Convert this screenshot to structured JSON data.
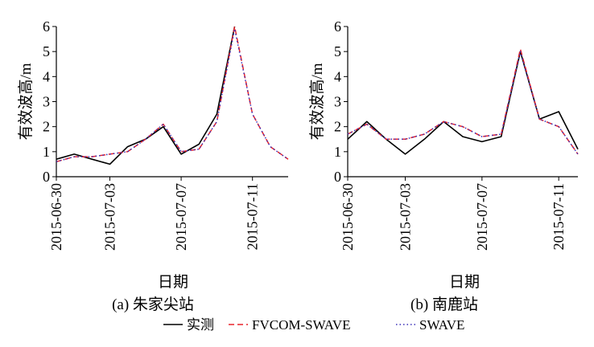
{
  "legend": {
    "items": [
      {
        "label": "实测",
        "color": "#000000",
        "dash": "solid"
      },
      {
        "label": "FVCOM-SWAVE",
        "color": "#e8242c",
        "dash": "dashed"
      },
      {
        "label": "SWAVE",
        "color": "#3a2fb8",
        "dash": "dotted"
      }
    ]
  },
  "chart_data": [
    {
      "type": "line",
      "caption": "(a) 朱家尖站",
      "xlabel": "日期",
      "ylabel": "有效波高/m",
      "xlim": [
        "2015-06-30",
        "2015-07-13"
      ],
      "ylim": [
        0,
        6
      ],
      "xticks": [
        "2015-06-30",
        "2015-07-03",
        "2015-07-07",
        "2015-07-11"
      ],
      "yticks": [
        0,
        1,
        2,
        3,
        4,
        5,
        6
      ],
      "series": [
        {
          "name": "实测",
          "color": "#000000",
          "dash": "solid",
          "x": [
            "2015-06-30",
            "2015-07-01",
            "2015-07-02",
            "2015-07-03",
            "2015-07-04",
            "2015-07-05",
            "2015-07-06",
            "2015-07-07",
            "2015-07-08",
            "2015-07-09",
            "2015-07-10"
          ],
          "values": [
            0.7,
            0.9,
            0.7,
            0.5,
            1.2,
            1.5,
            2.0,
            0.9,
            1.3,
            2.5,
            6.0
          ]
        },
        {
          "name": "FVCOM-SWAVE",
          "color": "#e8242c",
          "dash": "dashed",
          "x": [
            "2015-06-30",
            "2015-07-01",
            "2015-07-02",
            "2015-07-03",
            "2015-07-04",
            "2015-07-05",
            "2015-07-06",
            "2015-07-07",
            "2015-07-08",
            "2015-07-09",
            "2015-07-10",
            "2015-07-11",
            "2015-07-12",
            "2015-07-13"
          ],
          "values": [
            0.6,
            0.8,
            0.8,
            0.9,
            1.0,
            1.5,
            2.1,
            1.0,
            1.1,
            2.2,
            6.0,
            2.5,
            1.2,
            0.7
          ]
        },
        {
          "name": "SWAVE",
          "color": "#3a2fb8",
          "dash": "dotted",
          "x": [
            "2015-06-30",
            "2015-07-01",
            "2015-07-02",
            "2015-07-03",
            "2015-07-04",
            "2015-07-05",
            "2015-07-06",
            "2015-07-07",
            "2015-07-08",
            "2015-07-09",
            "2015-07-10",
            "2015-07-11",
            "2015-07-12",
            "2015-07-13"
          ],
          "values": [
            0.6,
            0.8,
            0.8,
            0.9,
            1.0,
            1.5,
            2.1,
            1.0,
            1.1,
            2.2,
            5.9,
            2.5,
            1.2,
            0.7
          ]
        }
      ]
    },
    {
      "type": "line",
      "caption": "(b) 南鹿站",
      "xlabel": "日期",
      "ylabel": "有效波高/m",
      "xlim": [
        "2015-06-30",
        "2015-07-12"
      ],
      "ylim": [
        0,
        6
      ],
      "xticks": [
        "2015-06-30",
        "2015-07-03",
        "2015-07-07",
        "2015-07-11"
      ],
      "yticks": [
        0,
        1,
        2,
        3,
        4,
        5,
        6
      ],
      "series": [
        {
          "name": "实测",
          "color": "#000000",
          "dash": "solid",
          "x": [
            "2015-06-30",
            "2015-07-01",
            "2015-07-02",
            "2015-07-03",
            "2015-07-04",
            "2015-07-05",
            "2015-07-06",
            "2015-07-07",
            "2015-07-08",
            "2015-07-09",
            "2015-07-10",
            "2015-07-11",
            "2015-07-12"
          ],
          "values": [
            1.5,
            2.2,
            1.5,
            0.9,
            1.5,
            2.2,
            1.6,
            1.4,
            1.6,
            5.0,
            2.3,
            2.6,
            1.1
          ]
        },
        {
          "name": "FVCOM-SWAVE",
          "color": "#e8242c",
          "dash": "dashed",
          "x": [
            "2015-06-30",
            "2015-07-01",
            "2015-07-02",
            "2015-07-03",
            "2015-07-04",
            "2015-07-05",
            "2015-07-06",
            "2015-07-07",
            "2015-07-08",
            "2015-07-09",
            "2015-07-10",
            "2015-07-11",
            "2015-07-12"
          ],
          "values": [
            1.7,
            2.1,
            1.5,
            1.5,
            1.7,
            2.2,
            2.0,
            1.6,
            1.7,
            5.1,
            2.3,
            2.0,
            0.9
          ]
        },
        {
          "name": "SWAVE",
          "color": "#3a2fb8",
          "dash": "dotted",
          "x": [
            "2015-06-30",
            "2015-07-01",
            "2015-07-02",
            "2015-07-03",
            "2015-07-04",
            "2015-07-05",
            "2015-07-06",
            "2015-07-07",
            "2015-07-08",
            "2015-07-09",
            "2015-07-10",
            "2015-07-11",
            "2015-07-12"
          ],
          "values": [
            1.7,
            2.1,
            1.5,
            1.5,
            1.7,
            2.2,
            2.0,
            1.6,
            1.7,
            5.0,
            2.3,
            2.0,
            0.9
          ]
        }
      ]
    }
  ]
}
